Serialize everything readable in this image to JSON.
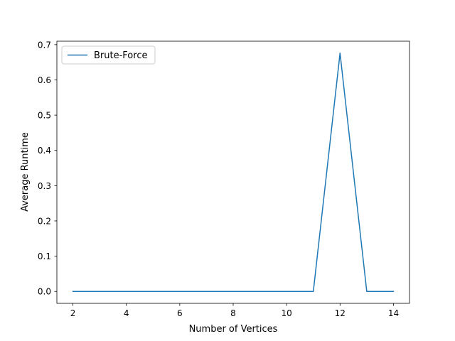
{
  "chart_data": {
    "type": "line",
    "title": "",
    "xlabel": "Number of Vertices",
    "ylabel": "Average Runtime",
    "x": [
      2,
      3,
      4,
      5,
      6,
      7,
      8,
      9,
      10,
      11,
      12,
      13,
      14
    ],
    "series": [
      {
        "name": "Brute-Force",
        "color": "#1f77b4",
        "values": [
          0.0,
          0.0,
          0.0,
          0.0,
          0.0,
          0.0,
          0.0,
          0.0,
          0.0,
          0.0,
          0.676,
          0.0,
          0.0
        ]
      }
    ],
    "xlim": [
      1.4,
      14.6
    ],
    "ylim": [
      -0.0338,
      0.7098
    ],
    "xticks": [
      2,
      4,
      6,
      8,
      10,
      12,
      14
    ],
    "xtick_labels": [
      "2",
      "4",
      "6",
      "8",
      "10",
      "12",
      "14"
    ],
    "yticks": [
      0.0,
      0.1,
      0.2,
      0.3,
      0.4,
      0.5,
      0.6,
      0.7
    ],
    "ytick_labels": [
      "0.0",
      "0.1",
      "0.2",
      "0.3",
      "0.4",
      "0.5",
      "0.6",
      "0.7"
    ],
    "grid": false,
    "legend_position": "top-left"
  }
}
